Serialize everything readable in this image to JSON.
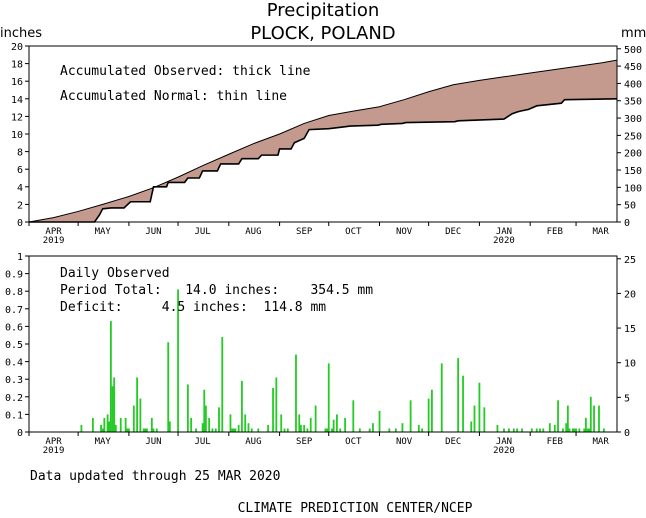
{
  "title": "Precipitation",
  "subtitle": "PLOCK, POLAND",
  "top_panel": {
    "left_unit": "inches",
    "right_unit": "mm",
    "note1": "Accumulated Observed: thick line",
    "note2": "Accumulated Normal: thin line"
  },
  "bottom_panel": {
    "heading": "Daily Observed",
    "period_total": "Period Total:   14.0 inches:    354.5 mm",
    "deficit": "Deficit:     4.5 inches:  114.8 mm"
  },
  "footer_updated": "Data updated through 25 MAR 2020",
  "footer_credit": "CLIMATE PREDICTION CENTER/NCEP",
  "colors": {
    "fill": "#c49a8e",
    "bars": "#22cc22",
    "line": "#000000"
  },
  "chart_data": [
    {
      "type": "area",
      "x_labels": [
        {
          "label": "APR",
          "year": "2019"
        },
        {
          "label": "MAY",
          "year": ""
        },
        {
          "label": "JUN",
          "year": ""
        },
        {
          "label": "JUL",
          "year": ""
        },
        {
          "label": "AUG",
          "year": ""
        },
        {
          "label": "SEP",
          "year": ""
        },
        {
          "label": "OCT",
          "year": ""
        },
        {
          "label": "NOV",
          "year": ""
        },
        {
          "label": "DEC",
          "year": ""
        },
        {
          "label": "JAN",
          "year": "2020"
        },
        {
          "label": "FEB",
          "year": ""
        },
        {
          "label": "MAR",
          "year": ""
        }
      ],
      "xlim": [
        0,
        359
      ],
      "ylim": [
        0,
        20
      ],
      "yticks": [
        0,
        2,
        4,
        6,
        8,
        10,
        12,
        14,
        16,
        18,
        20
      ],
      "y2lim": [
        0,
        508
      ],
      "y2ticks": [
        0,
        50,
        100,
        150,
        200,
        250,
        300,
        350,
        400,
        450,
        500
      ],
      "series": [
        {
          "name": "Accumulated Normal",
          "x": [
            0,
            15,
            30,
            45,
            61,
            76,
            91,
            106,
            122,
            137,
            153,
            168,
            183,
            198,
            214,
            229,
            244,
            259,
            275,
            290,
            305,
            320,
            335,
            350,
            359
          ],
          "y": [
            0,
            0.5,
            1.2,
            2.0,
            2.9,
            3.9,
            5.1,
            6.4,
            7.7,
            8.9,
            10.0,
            11.2,
            12.1,
            12.6,
            13.1,
            13.9,
            14.8,
            15.6,
            16.1,
            16.5,
            16.9,
            17.3,
            17.7,
            18.1,
            18.4
          ]
        },
        {
          "name": "Accumulated Observed",
          "x": [
            0,
            40,
            43,
            45,
            50,
            58,
            62,
            74,
            76,
            84,
            85,
            95,
            97,
            104,
            106,
            115,
            117,
            128,
            130,
            140,
            142,
            152,
            153,
            160,
            162,
            168,
            171,
            183,
            192,
            196,
            213,
            215,
            228,
            230,
            260,
            262,
            290,
            295,
            298,
            300,
            305,
            310,
            325,
            327,
            359
          ],
          "y": [
            0,
            0,
            0.8,
            1.5,
            1.6,
            1.6,
            2.3,
            2.3,
            4.0,
            4.0,
            4.5,
            4.5,
            5.0,
            5.0,
            5.8,
            5.8,
            6.6,
            6.6,
            7.2,
            7.2,
            7.6,
            7.6,
            8.3,
            8.3,
            9.0,
            9.5,
            10.5,
            10.6,
            10.8,
            10.9,
            11.0,
            11.1,
            11.2,
            11.3,
            11.4,
            11.5,
            11.7,
            12.3,
            12.5,
            12.6,
            12.8,
            13.2,
            13.5,
            13.9,
            14.0
          ]
        }
      ]
    },
    {
      "type": "bar",
      "x_labels": [
        {
          "label": "APR",
          "year": "2019"
        },
        {
          "label": "MAY",
          "year": ""
        },
        {
          "label": "JUN",
          "year": ""
        },
        {
          "label": "JUL",
          "year": ""
        },
        {
          "label": "AUG",
          "year": ""
        },
        {
          "label": "SEP",
          "year": ""
        },
        {
          "label": "OCT",
          "year": ""
        },
        {
          "label": "NOV",
          "year": ""
        },
        {
          "label": "DEC",
          "year": ""
        },
        {
          "label": "JAN",
          "year": "2020"
        },
        {
          "label": "FEB",
          "year": ""
        },
        {
          "label": "MAR",
          "year": ""
        }
      ],
      "xlim": [
        0,
        359
      ],
      "ylim": [
        0,
        1
      ],
      "yticks": [
        0,
        0.1,
        0.2,
        0.3,
        0.4,
        0.5,
        0.6,
        0.7,
        0.8,
        0.9,
        1
      ],
      "y2lim": [
        0,
        25.4
      ],
      "y2ticks": [
        0,
        5,
        10,
        15,
        20,
        25
      ],
      "series": [
        {
          "name": "Daily Observed",
          "x": [
            32,
            39,
            44,
            45,
            46,
            48,
            49,
            50,
            51,
            52,
            53,
            56,
            59,
            60,
            61,
            64,
            66,
            68,
            70,
            71,
            72,
            75,
            76,
            78,
            85,
            86,
            91,
            97,
            99,
            102,
            106,
            107,
            108,
            110,
            112,
            114,
            116,
            118,
            123,
            124,
            125,
            126,
            128,
            130,
            132,
            134,
            136,
            140,
            146,
            149,
            151,
            154,
            156,
            158,
            163,
            165,
            166,
            168,
            170,
            172,
            175,
            181,
            182,
            183,
            185,
            186,
            188,
            190,
            193,
            198,
            202,
            208,
            210,
            214,
            220,
            224,
            228,
            233,
            238,
            240,
            244,
            246,
            252,
            262,
            265,
            270,
            272,
            275,
            278,
            286,
            290,
            293,
            296,
            298,
            301,
            307,
            310,
            312,
            314,
            318,
            321,
            323,
            326,
            328,
            329,
            330,
            332,
            333,
            334,
            336,
            339,
            340,
            341,
            342,
            343,
            345,
            348,
            351
          ],
          "y": [
            0.04,
            0.08,
            0.04,
            0.02,
            0.08,
            0.1,
            0.06,
            0.63,
            0.26,
            0.31,
            0.04,
            0.08,
            0.08,
            0.02,
            0.02,
            0.15,
            0.31,
            0.19,
            0.02,
            0.02,
            0.02,
            0.08,
            0.02,
            0.02,
            0.51,
            0.06,
            0.81,
            0.27,
            0.08,
            0.02,
            0.05,
            0.24,
            0.15,
            0.08,
            0.02,
            0.02,
            0.14,
            0.54,
            0.1,
            0.02,
            0.02,
            0.02,
            0.04,
            0.29,
            0.1,
            0.05,
            0.02,
            0.02,
            0.04,
            0.25,
            0.31,
            0.1,
            0.02,
            0.02,
            0.44,
            0.1,
            0.04,
            0.04,
            0.02,
            0.08,
            0.15,
            0.02,
            0.02,
            0.39,
            0.02,
            0.07,
            0.1,
            0.02,
            0.08,
            0.18,
            0.02,
            0.02,
            0.05,
            0.12,
            0.02,
            0.02,
            0.05,
            0.18,
            0.04,
            0.02,
            0.19,
            0.24,
            0.39,
            0.42,
            0.32,
            0.06,
            0.15,
            0.28,
            0.14,
            0.04,
            0.02,
            0.02,
            0.02,
            0.02,
            0.02,
            0.02,
            0.02,
            0.02,
            0.02,
            0.05,
            0.04,
            0.18,
            0.02,
            0.05,
            0.15,
            0.02,
            0.02,
            0.02,
            0.02,
            0.02,
            0.02,
            0.08,
            0.02,
            0.02,
            0.2,
            0.15,
            0.15,
            0.02
          ]
        }
      ]
    }
  ]
}
